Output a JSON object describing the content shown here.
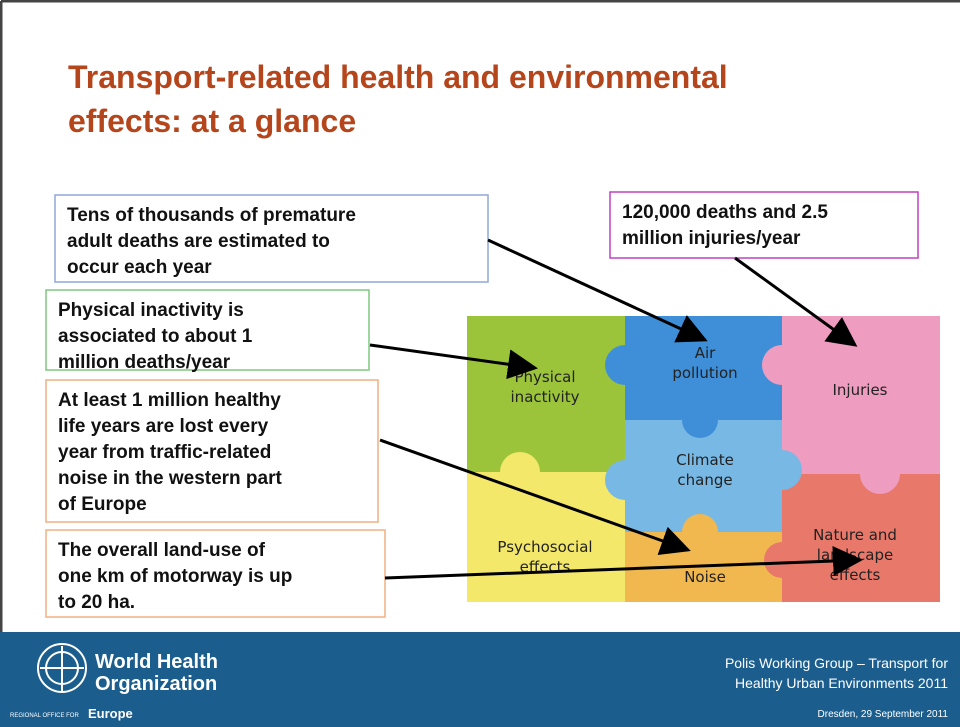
{
  "title": [
    "Transport-related health and environmental",
    "effects: at a glance"
  ],
  "callouts": [
    {
      "lines": [
        "Tens of thousands of premature",
        "adult deaths are estimated to",
        "occur each year"
      ]
    },
    {
      "lines": [
        "Physical inactivity is",
        "associated to about 1",
        "million deaths/year"
      ]
    },
    {
      "lines": [
        "At least 1 million healthy",
        "life years are lost every",
        "year from traffic-related",
        "noise in the western part",
        "of Europe"
      ]
    },
    {
      "lines": [
        "The overall land-use of",
        "one km of motorway is up",
        "to 20 ha."
      ]
    },
    {
      "lines": [
        "120,000 deaths and 2.5",
        "million injuries/year"
      ]
    }
  ],
  "pieces": [
    {
      "lines": [
        "Physical",
        "inactivity"
      ]
    },
    {
      "lines": [
        "Air",
        "pollution"
      ]
    },
    {
      "lines": [
        "Injuries"
      ]
    },
    {
      "lines": [
        "Climate",
        "change"
      ]
    },
    {
      "lines": [
        "Psychosocial",
        "effects"
      ]
    },
    {
      "lines": [
        "Noise"
      ]
    },
    {
      "lines": [
        "Nature and",
        "landscape",
        "effects"
      ]
    }
  ],
  "footer": {
    "org": [
      "World Health",
      "Organization"
    ],
    "office_prefix": "REGIONAL OFFICE FOR",
    "office": "Europe",
    "event": [
      "Polis Working Group – Transport for",
      "Healthy Urban Environments  2011"
    ],
    "date": "Dresden, 29 September 2011"
  }
}
